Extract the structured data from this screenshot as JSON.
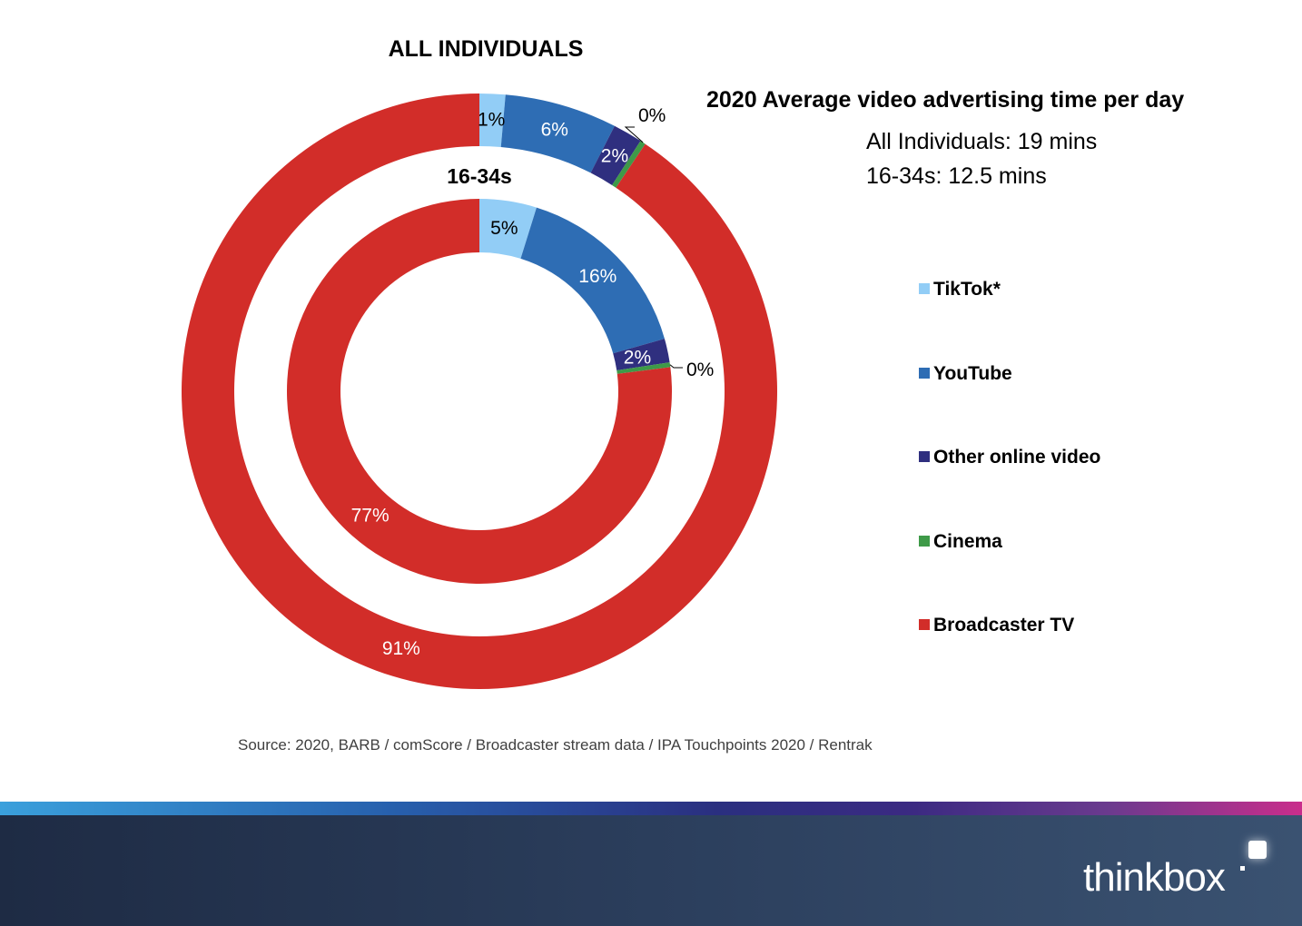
{
  "chart_data": {
    "type": "pie",
    "variant": "nested-donut",
    "title": "2020 Average video advertising time per day",
    "subtitle_lines": [
      "All Individuals: 19 mins",
      "16-34s: 12.5 mins"
    ],
    "categories": [
      "TikTok*",
      "YouTube",
      "Other online video",
      "Cinema",
      "Broadcaster TV"
    ],
    "colors": [
      "#92cdf6",
      "#2e6db4",
      "#2f2f7f",
      "#3e9a48",
      "#d22d29"
    ],
    "series": [
      {
        "name": "ALL INDIVIDUALS",
        "ring": "outer",
        "values": [
          1.4,
          6.1,
          1.6,
          0.3,
          90.6
        ],
        "labels": [
          "1%",
          "6%",
          "2%",
          "0%",
          "91%"
        ]
      },
      {
        "name": "16-34s",
        "ring": "inner",
        "values": [
          4.8,
          15.8,
          2.0,
          0.4,
          77.0
        ],
        "labels": [
          "5%",
          "16%",
          "2%",
          "0%",
          "77%"
        ]
      }
    ],
    "legend": "right"
  },
  "source": "Source: 2020, BARB / comScore / Broadcaster stream data / IPA Touchpoints 2020 / Rentrak",
  "brand": {
    "logo_text": "thinkbox"
  }
}
